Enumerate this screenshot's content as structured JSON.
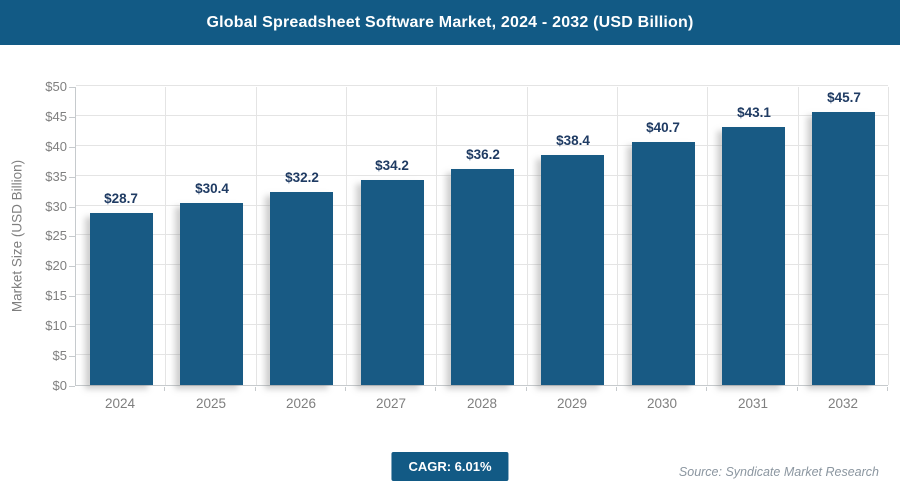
{
  "header": {
    "title": "Global Spreadsheet Software Market, 2024 - 2032 (USD Billion)"
  },
  "chart_data": {
    "type": "bar",
    "title": "Global Spreadsheet Software Market, 2024 - 2032 (USD Billion)",
    "categories": [
      "2024",
      "2025",
      "2026",
      "2027",
      "2028",
      "2029",
      "2030",
      "2031",
      "2032"
    ],
    "values": [
      28.7,
      30.4,
      32.2,
      34.2,
      36.2,
      38.4,
      40.7,
      43.1,
      45.7
    ],
    "data_labels": [
      "$28.7",
      "$30.4",
      "$32.2",
      "$34.2",
      "$36.2",
      "$38.4",
      "$40.7",
      "$43.1",
      "$45.7"
    ],
    "xlabel": "",
    "ylabel": "Market Size (USD Billion)",
    "ylim": [
      0,
      50
    ],
    "ytick_step": 5,
    "ytick_prefix": "$",
    "grid": true,
    "legend_position": "none"
  },
  "footer": {
    "cagr_label": "CAGR: 6.01%",
    "source": "Source: Syndicate Market Research"
  },
  "colors": {
    "header_bg": "#125a85",
    "bar": "#185a84",
    "data_label": "#1f3b63",
    "axis_text": "#7f7f7f",
    "gridline": "#e4e4e4",
    "axis_line": "#c6cacd",
    "badge_bg": "#125a85",
    "badge_text": "#ffffff",
    "source_text": "#8b96a0",
    "background": "#ffffff"
  }
}
